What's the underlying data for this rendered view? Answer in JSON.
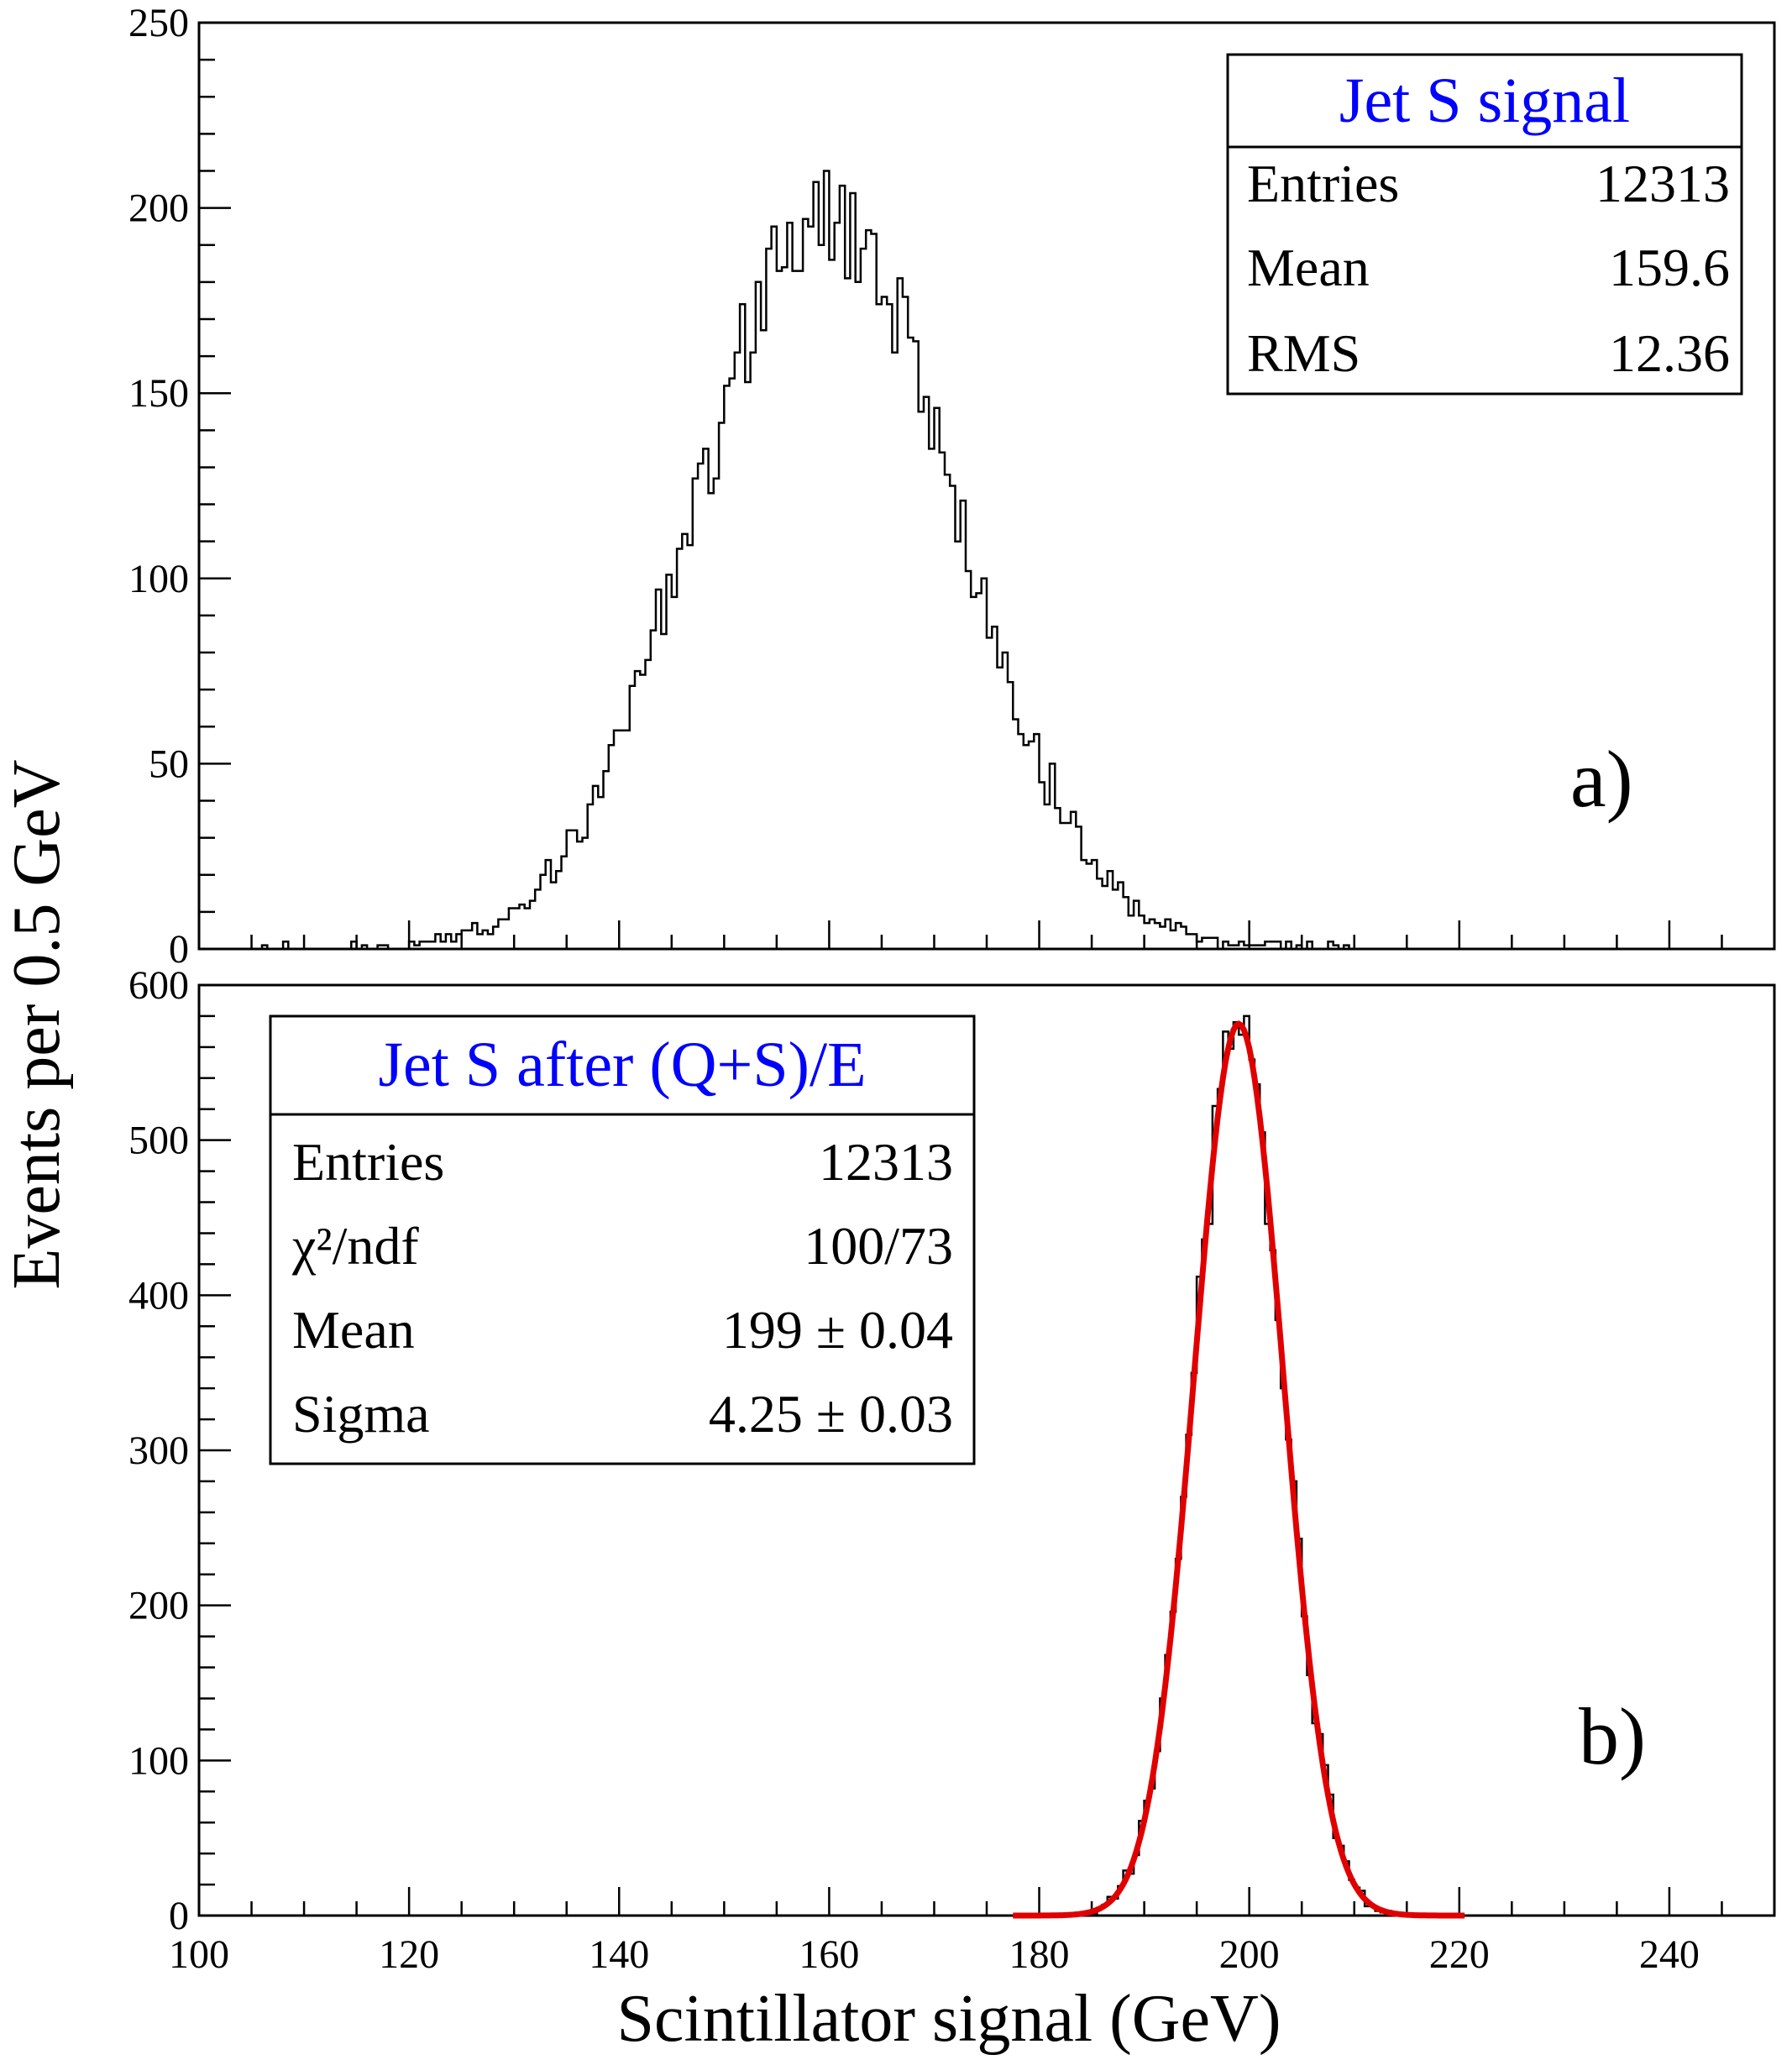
{
  "figure": {
    "ylabel": "Events per 0.5 GeV",
    "xlabel": "Scintillator signal (GeV)"
  },
  "colors": {
    "histogram": "#000000",
    "fit_curve": "#e00000",
    "stat_title": "#0000ff"
  },
  "chart_data": [
    {
      "type": "histogram",
      "panel_label": "a)",
      "xlim": [
        100,
        250
      ],
      "ylim": [
        0,
        250
      ],
      "bin_width": 0.5,
      "xticks": [
        "100",
        "120",
        "140",
        "160",
        "180",
        "200",
        "220",
        "240"
      ],
      "yticks": [
        "0",
        "50",
        "100",
        "150",
        "200",
        "250"
      ],
      "stats": {
        "title": "Jet S signal",
        "rows": [
          {
            "label": "Entries",
            "value": "12313"
          },
          {
            "label": "Mean",
            "value": "159.6"
          },
          {
            "label": "RMS",
            "value": "12.36"
          }
        ]
      },
      "distribution": {
        "mean": 159.6,
        "rms": 12.36,
        "entries": 12313
      }
    },
    {
      "type": "histogram",
      "panel_label": "b)",
      "xlim": [
        100,
        250
      ],
      "ylim": [
        0,
        600
      ],
      "bin_width": 0.5,
      "xticks": [
        "100",
        "120",
        "140",
        "160",
        "180",
        "200",
        "220",
        "240"
      ],
      "yticks": [
        "0",
        "100",
        "200",
        "300",
        "400",
        "500",
        "600"
      ],
      "stats": {
        "title": "Jet S after (Q+S)/E",
        "rows": [
          {
            "label": "Entries",
            "value": "12313"
          },
          {
            "label": "χ²/ndf",
            "value": "100/73"
          },
          {
            "label": "Mean",
            "value": "199 ± 0.04"
          },
          {
            "label": "Sigma",
            "value": "4.25 ± 0.03"
          }
        ]
      },
      "fit": {
        "type": "gaussian",
        "mean": 199,
        "sigma": 4.25,
        "peak": 575,
        "range": [
          177.5,
          220.5
        ]
      },
      "distribution": {
        "mean": 199,
        "sigma": 4.25,
        "entries": 12313
      }
    }
  ]
}
